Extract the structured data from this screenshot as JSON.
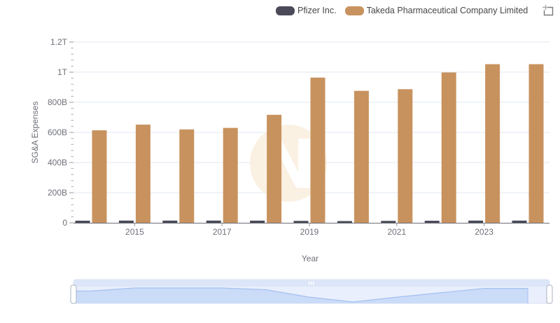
{
  "legend": {
    "series": [
      {
        "label": "Pfizer Inc.",
        "color": "#4a4a59"
      },
      {
        "label": "Takeda Pharmaceutical Company Limited",
        "color": "#c8925e"
      }
    ],
    "tools": [
      {
        "name": "zoom-select"
      },
      {
        "name": "zoom-reset"
      }
    ]
  },
  "chart_data": {
    "type": "bar",
    "title": "",
    "xlabel": "Year",
    "ylabel": "SG&A Expenses",
    "categories": [
      2014,
      2015,
      2016,
      2017,
      2018,
      2019,
      2020,
      2021,
      2022,
      2023,
      2024
    ],
    "x_tick_labels": [
      "2015",
      "2017",
      "2019",
      "2021",
      "2023"
    ],
    "x_tick_years": [
      2015,
      2017,
      2019,
      2021,
      2023
    ],
    "y_tick_labels": [
      "1.2T",
      "1T",
      "800B",
      "600B",
      "400B",
      "200B",
      "0"
    ],
    "y_tick_values": [
      1200,
      1000,
      800,
      600,
      400,
      200,
      0
    ],
    "ylim": [
      0,
      1200
    ],
    "unit": "B (billions; 1T = 1000B)",
    "grid": true,
    "legend_position": "top",
    "series": [
      {
        "name": "Pfizer Inc.",
        "key": "pfizer",
        "color": "#4a4a59",
        "values": [
          14.1,
          14.8,
          14.8,
          14.8,
          14.4,
          12.7,
          11.6,
          12.7,
          13.7,
          14.7,
          14.7
        ]
      },
      {
        "name": "Takeda Pharmaceutical Company Limited",
        "key": "takeda",
        "color": "#c8925e",
        "values": [
          614,
          652,
          620,
          630,
          717,
          964,
          876,
          887,
          998,
          1053,
          1053
        ]
      }
    ]
  },
  "slider": {
    "mini_series": "Pfizer Inc.",
    "selected_range": [
      "2014",
      "2024"
    ]
  },
  "watermark": {
    "letter": "N"
  }
}
